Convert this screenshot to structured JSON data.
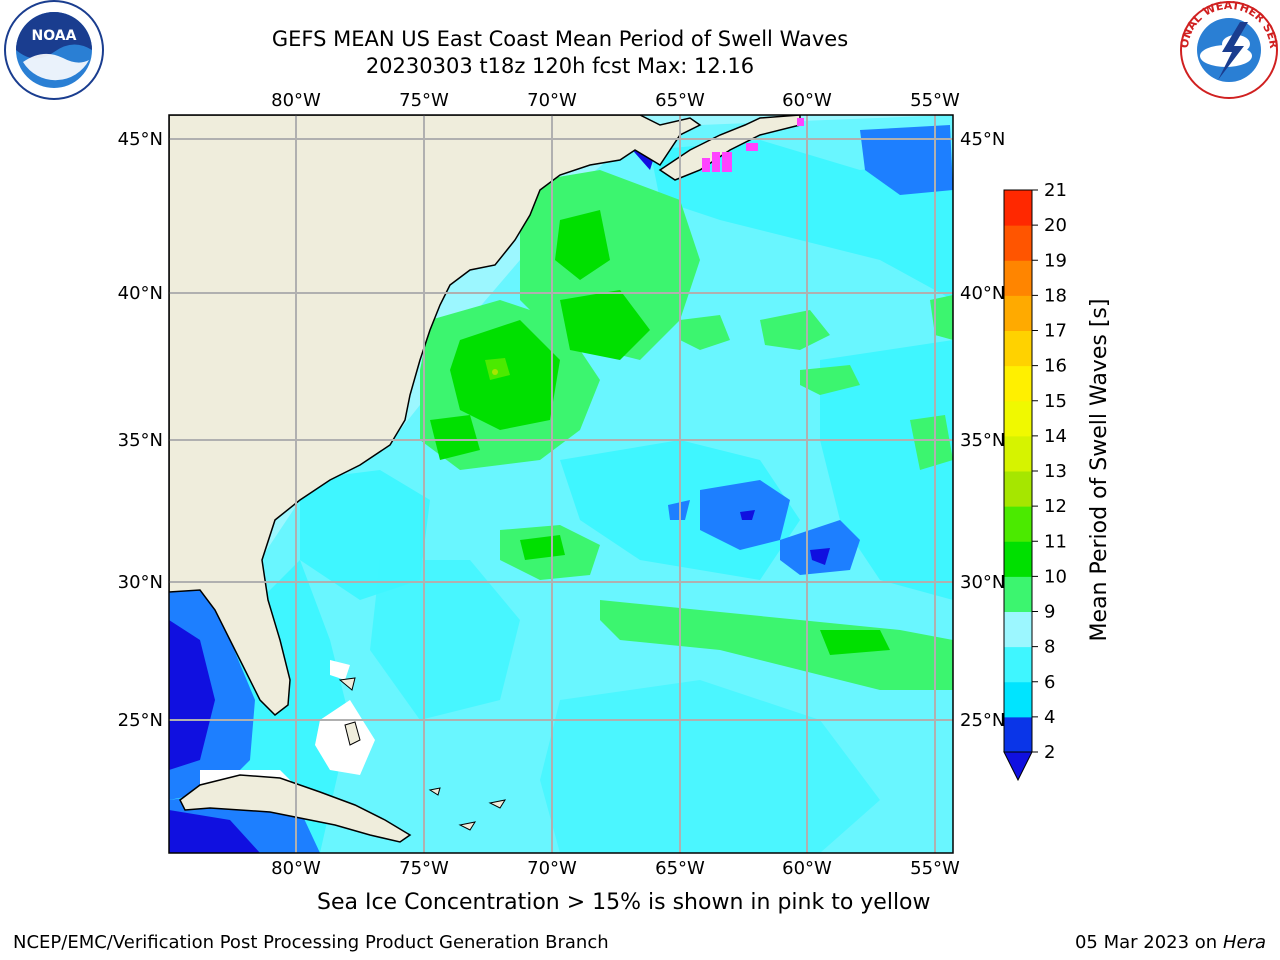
{
  "header": {
    "title_line1": "GEFS MEAN US East Coast Mean Period of Swell Waves",
    "title_line2": "20230303 t18z 120h fcst   Max: 12.16"
  },
  "map": {
    "lon_labels": [
      "80°W",
      "75°W",
      "70°W",
      "65°W",
      "60°W",
      "55°W"
    ],
    "lat_labels": [
      "45°N",
      "40°N",
      "35°N",
      "30°N",
      "25°N"
    ],
    "land_color": "#efeddc",
    "grid_color": "#b0b0b0"
  },
  "colorbar": {
    "label": "Mean Period of Swell Waves [s]",
    "ticks": [
      "2",
      "4",
      "6",
      "8",
      "9",
      "10",
      "11",
      "12",
      "13",
      "14",
      "15",
      "16",
      "17",
      "18",
      "19",
      "20",
      "21"
    ],
    "colors": [
      "#0a35e8",
      "#00e4ff",
      "#3ff6ff",
      "#9cf7ff",
      "#3cf56f",
      "#00e000",
      "#4bea00",
      "#a6e600",
      "#d6f300",
      "#f0f900",
      "#fff000",
      "#ffd200",
      "#ffaa00",
      "#ff8500",
      "#ff5500",
      "#ff2800"
    ],
    "under_color": "#1010e0"
  },
  "footer": {
    "note": "Sea Ice Concentration > 15% is shown in pink to yellow",
    "credit": "NCEP/EMC/Verification Post Processing Product Generation Branch",
    "date": "05 Mar 2023 on",
    "machine": "Hera"
  },
  "logos": {
    "left": "NOAA",
    "right": "NATIONAL WEATHER SERVICE"
  }
}
